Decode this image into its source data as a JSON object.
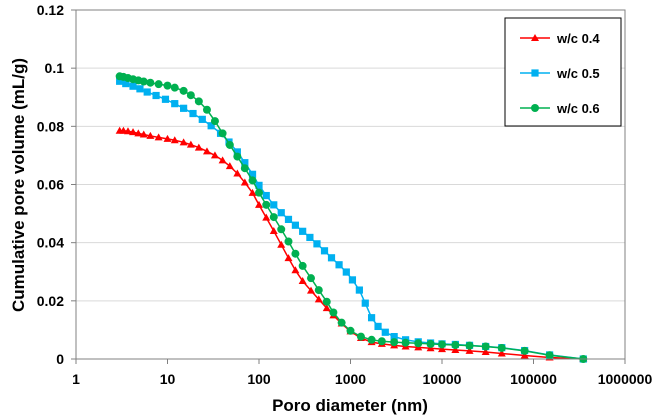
{
  "chart_data": {
    "type": "line",
    "title": "",
    "xlabel": "Poro diameter (nm)",
    "ylabel": "Cumulative pore volume (mL/g)",
    "xscale": "log",
    "xlim": [
      1,
      1000000
    ],
    "ylim": [
      0,
      0.12
    ],
    "xticks": [
      1,
      10,
      100,
      1000,
      10000,
      100000,
      1000000
    ],
    "xtick_labels": [
      "1",
      "10",
      "100",
      "1000",
      "10000",
      "100000",
      "1000000"
    ],
    "yticks": [
      0,
      0.02,
      0.04,
      0.06,
      0.08,
      0.1,
      0.12
    ],
    "ytick_labels": [
      "0",
      "0.02",
      "0.04",
      "0.06",
      "0.08",
      "0.1",
      "0.12"
    ],
    "grid": "horizontal",
    "legend_position": "top-right",
    "series": [
      {
        "name": "w/c 0.4",
        "color": "#ff0000",
        "marker": "triangle",
        "points": [
          [
            3,
            0.0785
          ],
          [
            3.3,
            0.0785
          ],
          [
            3.7,
            0.0783
          ],
          [
            4.2,
            0.078
          ],
          [
            4.8,
            0.0776
          ],
          [
            5.5,
            0.0772
          ],
          [
            6.5,
            0.0767
          ],
          [
            8,
            0.0762
          ],
          [
            10,
            0.0757
          ],
          [
            12,
            0.0752
          ],
          [
            15,
            0.0745
          ],
          [
            18,
            0.0737
          ],
          [
            22,
            0.0727
          ],
          [
            27,
            0.0714
          ],
          [
            33,
            0.07
          ],
          [
            40,
            0.0683
          ],
          [
            48,
            0.0663
          ],
          [
            58,
            0.0638
          ],
          [
            70,
            0.0607
          ],
          [
            85,
            0.0571
          ],
          [
            100,
            0.053
          ],
          [
            120,
            0.0486
          ],
          [
            145,
            0.044
          ],
          [
            175,
            0.0393
          ],
          [
            210,
            0.0347
          ],
          [
            250,
            0.0305
          ],
          [
            300,
            0.0268
          ],
          [
            370,
            0.0235
          ],
          [
            450,
            0.0205
          ],
          [
            550,
            0.0175
          ],
          [
            650,
            0.015
          ],
          [
            800,
            0.0122
          ],
          [
            1000,
            0.0095
          ],
          [
            1300,
            0.0072
          ],
          [
            1700,
            0.0058
          ],
          [
            2200,
            0.0052
          ],
          [
            3000,
            0.0047
          ],
          [
            4000,
            0.0043
          ],
          [
            5500,
            0.004
          ],
          [
            7500,
            0.0037
          ],
          [
            10000,
            0.0034
          ],
          [
            14000,
            0.0031
          ],
          [
            20000,
            0.0028
          ],
          [
            30000,
            0.0024
          ],
          [
            45000,
            0.0019
          ],
          [
            80000,
            0.0012
          ],
          [
            150000,
            0.0005
          ],
          [
            350000,
            0
          ]
        ]
      },
      {
        "name": "w/c 0.5",
        "color": "#00b0f0",
        "marker": "square",
        "points": [
          [
            3,
            0.0955
          ],
          [
            3.5,
            0.0947
          ],
          [
            4.2,
            0.0938
          ],
          [
            5,
            0.0929
          ],
          [
            6,
            0.0918
          ],
          [
            7.5,
            0.0906
          ],
          [
            9.5,
            0.0893
          ],
          [
            12,
            0.0878
          ],
          [
            15,
            0.0862
          ],
          [
            19,
            0.0844
          ],
          [
            24,
            0.0824
          ],
          [
            30,
            0.0802
          ],
          [
            38,
            0.0776
          ],
          [
            47,
            0.0746
          ],
          [
            58,
            0.0712
          ],
          [
            70,
            0.0675
          ],
          [
            85,
            0.0635
          ],
          [
            100,
            0.0597
          ],
          [
            120,
            0.0562
          ],
          [
            145,
            0.053
          ],
          [
            175,
            0.0503
          ],
          [
            210,
            0.048
          ],
          [
            250,
            0.046
          ],
          [
            300,
            0.0439
          ],
          [
            360,
            0.0418
          ],
          [
            430,
            0.0396
          ],
          [
            520,
            0.0372
          ],
          [
            620,
            0.0348
          ],
          [
            750,
            0.0324
          ],
          [
            900,
            0.0299
          ],
          [
            1050,
            0.0272
          ],
          [
            1250,
            0.0237
          ],
          [
            1450,
            0.0192
          ],
          [
            1700,
            0.0142
          ],
          [
            2000,
            0.0112
          ],
          [
            2400,
            0.0092
          ],
          [
            3000,
            0.0077
          ],
          [
            4000,
            0.0066
          ],
          [
            5500,
            0.0059
          ],
          [
            7500,
            0.0055
          ],
          [
            10000,
            0.0052
          ],
          [
            14000,
            0.005
          ],
          [
            20000,
            0.0047
          ],
          [
            30000,
            0.0043
          ],
          [
            45000,
            0.0039
          ],
          [
            80000,
            0.0029
          ],
          [
            150000,
            0.0014
          ],
          [
            350000,
            0
          ]
        ]
      },
      {
        "name": "w/c 0.6",
        "color": "#00b050",
        "marker": "circle",
        "points": [
          [
            3,
            0.0972
          ],
          [
            3.3,
            0.097
          ],
          [
            3.7,
            0.0966
          ],
          [
            4.2,
            0.0962
          ],
          [
            4.8,
            0.0958
          ],
          [
            5.5,
            0.0954
          ],
          [
            6.5,
            0.095
          ],
          [
            8,
            0.0945
          ],
          [
            10,
            0.094
          ],
          [
            12,
            0.0933
          ],
          [
            15,
            0.0922
          ],
          [
            18,
            0.0907
          ],
          [
            22,
            0.0886
          ],
          [
            27,
            0.0857
          ],
          [
            33,
            0.0818
          ],
          [
            40,
            0.0776
          ],
          [
            48,
            0.0736
          ],
          [
            58,
            0.0696
          ],
          [
            70,
            0.0656
          ],
          [
            85,
            0.0614
          ],
          [
            100,
            0.0572
          ],
          [
            120,
            0.053
          ],
          [
            145,
            0.0488
          ],
          [
            175,
            0.0446
          ],
          [
            210,
            0.0404
          ],
          [
            250,
            0.0362
          ],
          [
            300,
            0.032
          ],
          [
            370,
            0.0278
          ],
          [
            450,
            0.0237
          ],
          [
            550,
            0.0197
          ],
          [
            650,
            0.016
          ],
          [
            800,
            0.0125
          ],
          [
            1000,
            0.0097
          ],
          [
            1300,
            0.0077
          ],
          [
            1700,
            0.0066
          ],
          [
            2200,
            0.0061
          ],
          [
            3000,
            0.0058
          ],
          [
            4000,
            0.0056
          ],
          [
            5500,
            0.0054
          ],
          [
            7500,
            0.0052
          ],
          [
            10000,
            0.005
          ],
          [
            14000,
            0.0048
          ],
          [
            20000,
            0.0046
          ],
          [
            30000,
            0.0043
          ],
          [
            45000,
            0.0038
          ],
          [
            80000,
            0.0028
          ],
          [
            150000,
            0.0013
          ],
          [
            350000,
            0
          ]
        ]
      }
    ]
  }
}
